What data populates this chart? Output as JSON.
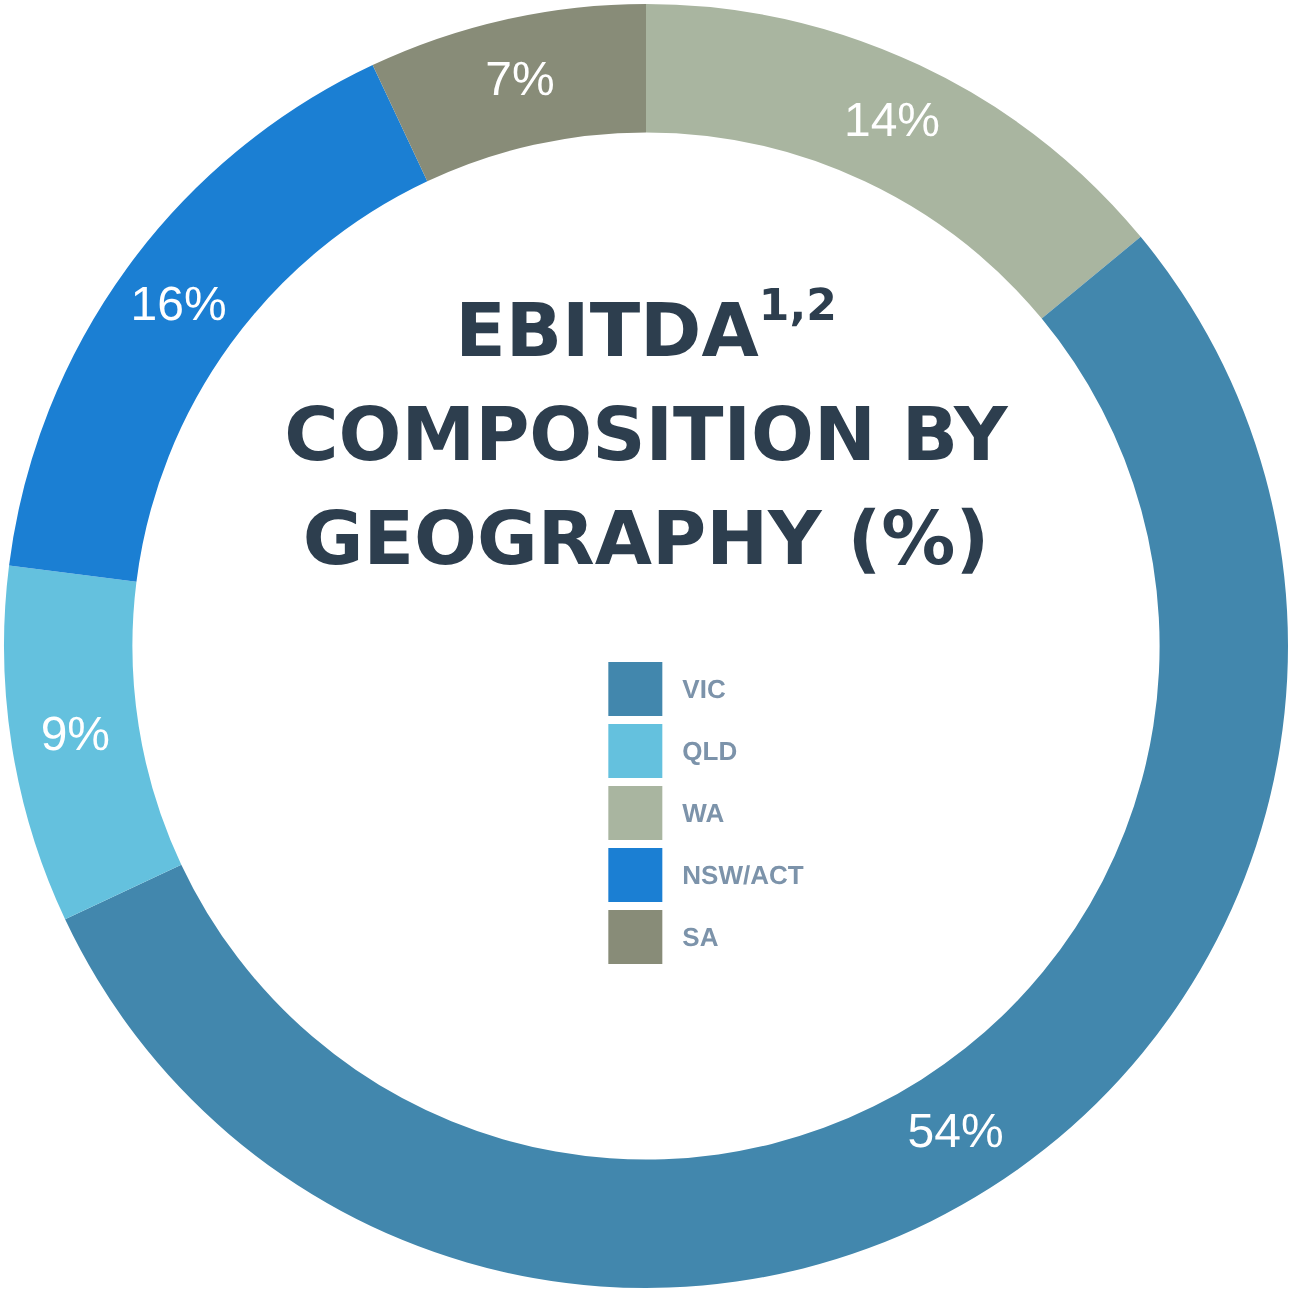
{
  "chart_data": {
    "type": "donut",
    "title": "EBITDA$^{1,2}$ COMPOSITION BY GEOGRAPHY (%)",
    "categories": [
      "WA",
      "VIC",
      "QLD",
      "NSW/ACT",
      "SA"
    ],
    "values": [
      14,
      54,
      9,
      16,
      7
    ],
    "colors": [
      "#a9b5a0",
      "#4287ad",
      "#64c1de",
      "#1b7fd3",
      "#888c78"
    ],
    "value_labels": [
      "14%",
      "54%",
      "9%",
      "16%",
      "7%"
    ],
    "legend": "center"
  }
}
